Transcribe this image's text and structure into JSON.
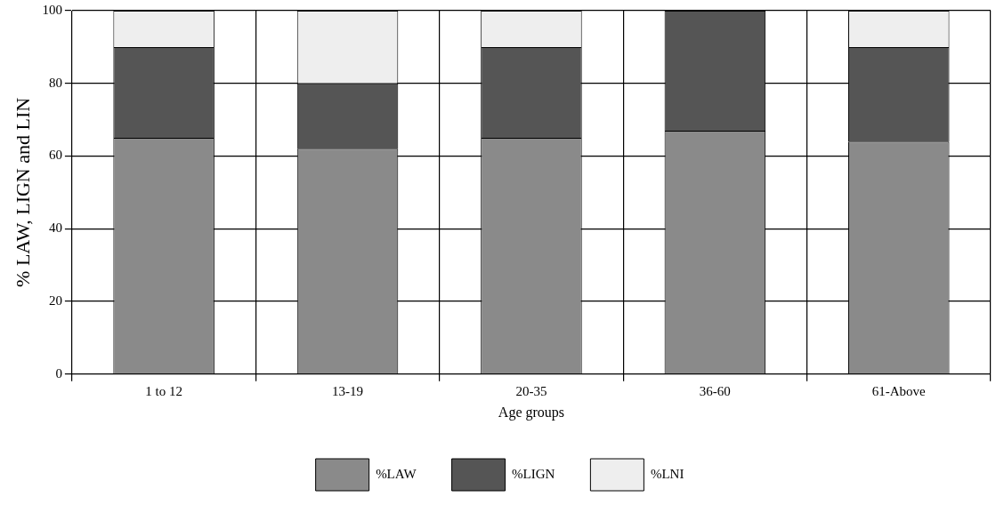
{
  "chart_data": {
    "type": "bar",
    "stacked": true,
    "xlabel": "Age groups",
    "ylabel": "% LAW, LIGN and LIN",
    "categories": [
      "1 to 12",
      "13-19",
      "20-35",
      "36-60",
      "61-Above"
    ],
    "series": [
      {
        "name": "%LAW",
        "color": "#8a8a8a",
        "values": [
          65,
          62,
          65,
          67,
          64
        ]
      },
      {
        "name": "%LIGN",
        "color": "#555555",
        "values": [
          25,
          18,
          25,
          33,
          26
        ]
      },
      {
        "name": "%LNI",
        "color": "#eeeeee",
        "values": [
          10,
          20,
          10,
          0,
          10
        ]
      }
    ],
    "ylim": [
      0,
      100
    ],
    "yticks": [
      0,
      20,
      40,
      60,
      80,
      100
    ],
    "grid": true,
    "legend": "bottom"
  }
}
